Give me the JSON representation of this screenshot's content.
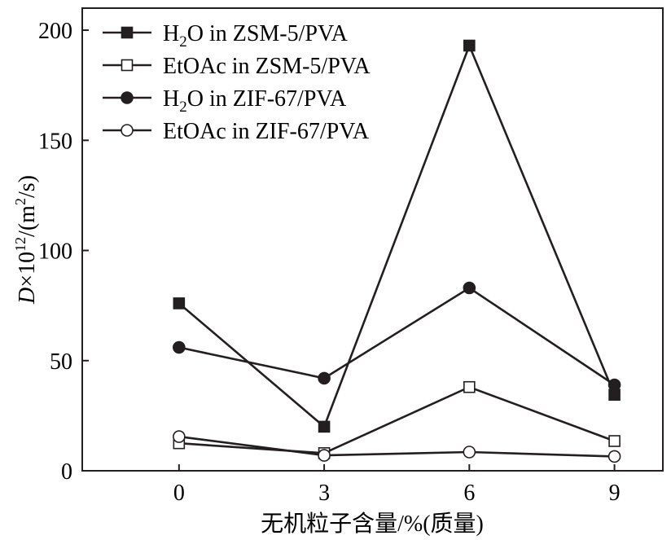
{
  "chart_data": {
    "type": "line",
    "x": [
      0,
      3,
      6,
      9
    ],
    "xlim": [
      -2,
      10
    ],
    "ylim": [
      0,
      210
    ],
    "xticks": [
      "0",
      "3",
      "6",
      "9"
    ],
    "yticks": [
      "0",
      "50",
      "100",
      "150",
      "200"
    ],
    "xlabel": "无机粒子含量/%(质量)",
    "ylabel": {
      "symbol": "D",
      "times": "×10",
      "exp": "12",
      "unit_open": "/(m",
      "unit_exp": "2",
      "unit_close": "/s)"
    },
    "grid": false,
    "legend_position": "top-left",
    "series": [
      {
        "label_parts": [
          "H",
          "2",
          "O in ZSM-5/PVA"
        ],
        "marker": "square-filled",
        "values": [
          76,
          20,
          193,
          34.5
        ]
      },
      {
        "label_parts": [
          "EtOAc in ZSM-5/PVA"
        ],
        "marker": "square-open",
        "values": [
          12.5,
          8,
          38,
          13.5
        ]
      },
      {
        "label_parts": [
          "H",
          "2",
          "O in ZIF-67/PVA"
        ],
        "marker": "circle-filled",
        "values": [
          56,
          42,
          83,
          39
        ]
      },
      {
        "label_parts": [
          "EtOAc in ZIF-67/PVA"
        ],
        "marker": "circle-open",
        "values": [
          15.5,
          7,
          8.5,
          6.5
        ]
      }
    ],
    "colors": {
      "line": "#231f20",
      "marker_fill_filled": "#231f20",
      "marker_fill_open": "#ffffff"
    }
  }
}
